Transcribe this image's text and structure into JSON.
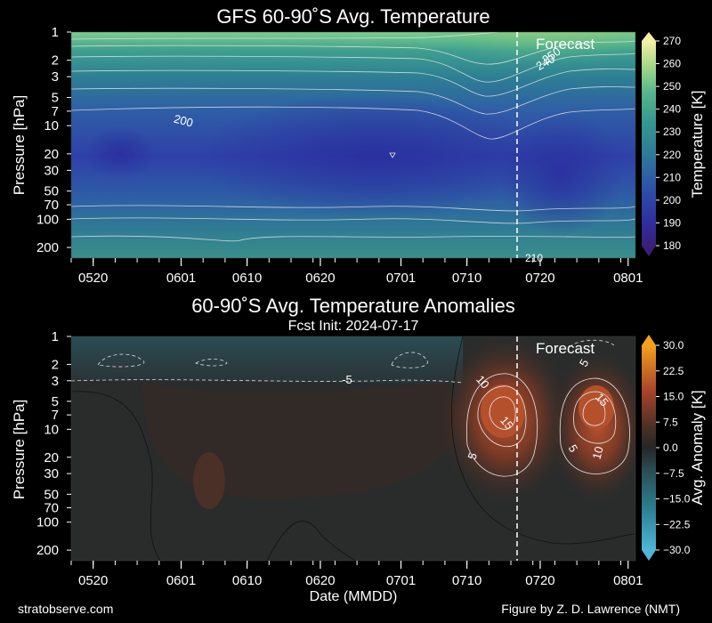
{
  "chart_data": [
    {
      "type": "heatmap",
      "title": "GFS 60-90˚S Avg. Temperature",
      "xlabel": "",
      "ylabel": "Pressure [hPa]",
      "y_scale": "log",
      "y_ticks": [
        "1",
        "2",
        "3",
        "5",
        "7",
        "10",
        "20",
        "30",
        "50",
        "70",
        "100",
        "200"
      ],
      "x_ticks": [
        "0520",
        "0601",
        "0610",
        "0620",
        "0701",
        "0710",
        "0720",
        "0801"
      ],
      "forecast_label": "Forecast",
      "forecast_start": "0717",
      "colorbar": {
        "label": "Temperature [K]",
        "ticks": [
          "180",
          "190",
          "200",
          "210",
          "220",
          "230",
          "240",
          "250",
          "260",
          "270"
        ],
        "range": [
          180,
          270
        ]
      },
      "contour_labels": [
        "200",
        "250",
        "240",
        "210"
      ]
    },
    {
      "type": "heatmap",
      "title": "60-90˚S Avg. Temperature Anomalies",
      "subtitle": "Fcst Init: 2024-07-17",
      "xlabel": "Date (MMDD)",
      "ylabel": "Pressure [hPa]",
      "y_scale": "log",
      "y_ticks": [
        "1",
        "2",
        "3",
        "5",
        "7",
        "10",
        "20",
        "30",
        "50",
        "70",
        "100",
        "200"
      ],
      "x_ticks": [
        "0520",
        "0601",
        "0610",
        "0620",
        "0701",
        "0710",
        "0720",
        "0801"
      ],
      "forecast_label": "Forecast",
      "forecast_start": "0717",
      "colorbar": {
        "label": "Avg. Anomaly [K]",
        "ticks": [
          "30.0",
          "22.5",
          "15.0",
          "7.5",
          "0.0",
          "−7.5",
          "−15.0",
          "−22.5",
          "−30.0"
        ],
        "range": [
          -30,
          30
        ]
      },
      "contour_labels": [
        "-5",
        "10",
        "15",
        "5",
        "5",
        "15",
        "5",
        "10"
      ]
    }
  ],
  "footer": {
    "left": "stratobserve.com",
    "right": "Figure by Z. D. Lawrence (NMT)"
  }
}
